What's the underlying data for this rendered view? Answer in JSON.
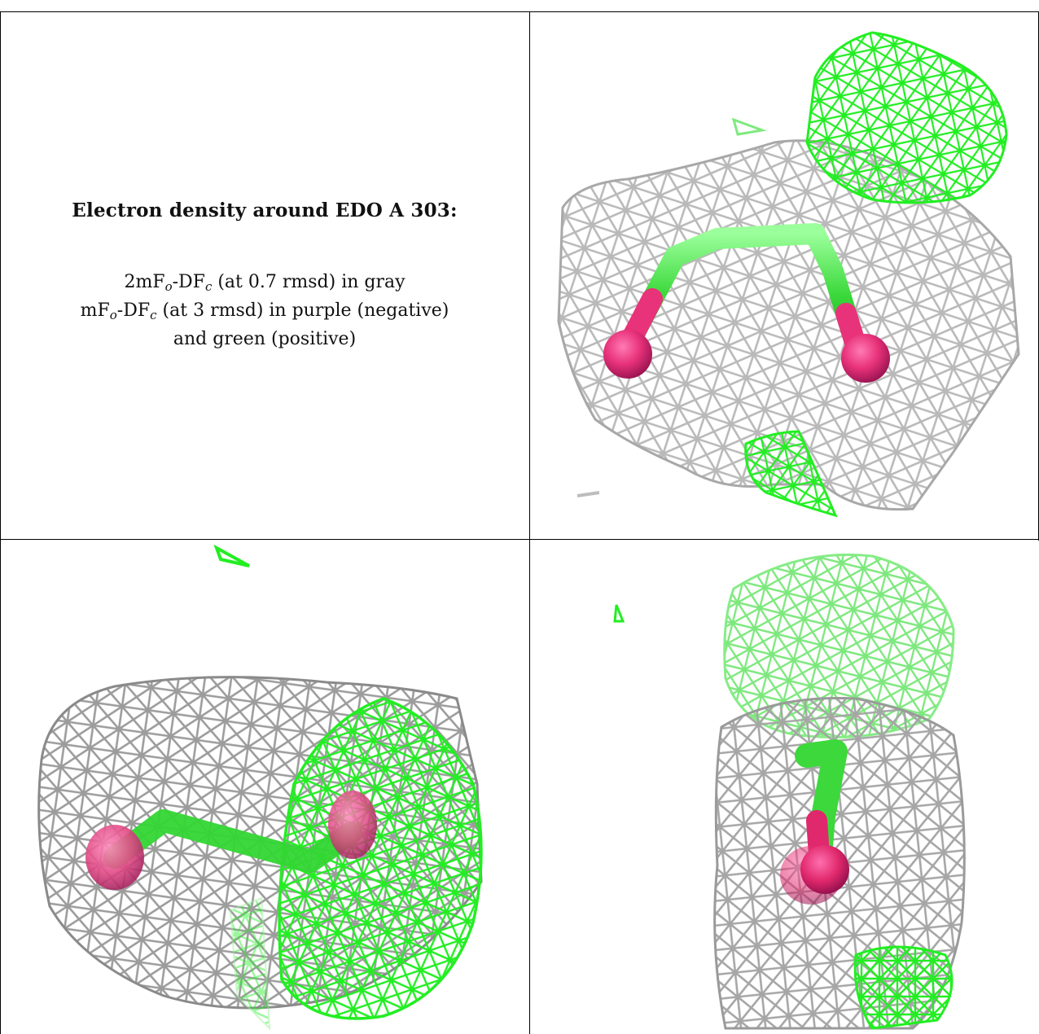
{
  "legend": {
    "title": "Electron density around EDO A 303:",
    "line1": {
      "pre": "2mF",
      "s1": "o",
      "mid": "-DF",
      "s2": "c",
      "post": " (at 0.7 rmsd) in gray"
    },
    "line2": {
      "pre": "mF",
      "s1": "o",
      "mid": "-DF",
      "s2": "c",
      "post": " (at 3 rmsd) in purple (negative)"
    },
    "line3": "and green (positive)"
  },
  "colors": {
    "gray_mesh": "#b9b9b9",
    "green_mesh": "#22ee22",
    "carbon_stick": "#44e044",
    "oxygen_atom": "#e8327a",
    "grid_lines": "#000000"
  }
}
